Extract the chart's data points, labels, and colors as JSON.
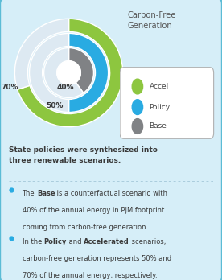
{
  "bg_color": "#d6eef8",
  "border_color": "#5bbcd6",
  "rings": [
    {
      "label": "Accel",
      "pct": 0.7,
      "color": "#8dc63f",
      "r_out": 1.0,
      "r_in": 0.76,
      "rest_color": "#dde9f2"
    },
    {
      "label": "Policy",
      "pct": 0.5,
      "color": "#29abe2",
      "r_out": 0.73,
      "r_in": 0.49,
      "rest_color": "#dde9f2"
    },
    {
      "label": "Base",
      "pct": 0.4,
      "color": "#808285",
      "r_out": 0.46,
      "r_in": 0.22,
      "rest_color": "#dde9f2"
    }
  ],
  "pct_labels": [
    {
      "text": "70%",
      "ring": 0
    },
    {
      "text": "50%",
      "ring": 1
    },
    {
      "text": "40%",
      "ring": 2
    }
  ],
  "chart_title": "Carbon-Free\nGeneration",
  "legend_labels": [
    "Accel",
    "Policy",
    "Base"
  ],
  "legend_colors": [
    "#8dc63f",
    "#29abe2",
    "#808285"
  ],
  "bullet_color": "#29abe2",
  "divider_color": "#aaccdd",
  "text_color": "#3a3a3a",
  "white": "#ffffff"
}
